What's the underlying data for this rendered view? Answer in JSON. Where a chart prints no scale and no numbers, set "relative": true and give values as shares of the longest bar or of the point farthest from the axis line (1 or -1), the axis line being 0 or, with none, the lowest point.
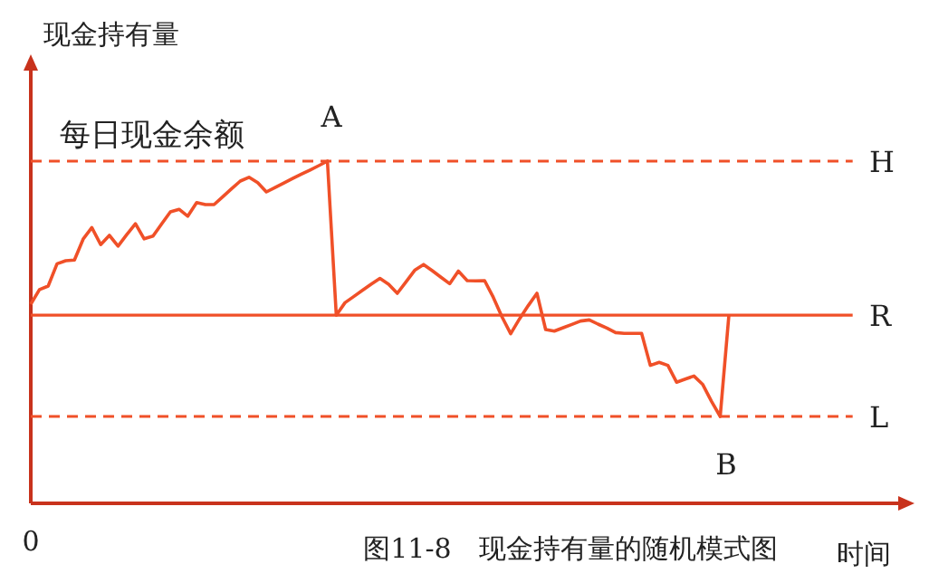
{
  "chart_data": {
    "type": "line",
    "relative": true,
    "title": "图11-8　现金持有量的随机模式图",
    "ylabel": "现金持有量",
    "xlabel": "时间",
    "marker": "none",
    "line_style": "solid",
    "categories": [
      null,
      null,
      null,
      null,
      null,
      null,
      null,
      null,
      null,
      null,
      null,
      null,
      null,
      null,
      null,
      null,
      null,
      null,
      null,
      null,
      null,
      null,
      null,
      null,
      null,
      null,
      null,
      null,
      null,
      null,
      null,
      null,
      null,
      null,
      null,
      null,
      null,
      null,
      null,
      null,
      null,
      null,
      null,
      null,
      null,
      null,
      null,
      null,
      null,
      null,
      null,
      null,
      null,
      null,
      null,
      null,
      null,
      null,
      null,
      null,
      null,
      null,
      null,
      null,
      null,
      null,
      null,
      null,
      null,
      null,
      null,
      null,
      null,
      null,
      null,
      null,
      null,
      null,
      null,
      null,
      null
    ],
    "series": [
      {
        "color": "#f05028",
        "values": [
          0.582,
          0.625,
          0.635,
          0.7,
          0.709,
          0.711,
          0.772,
          0.806,
          0.756,
          0.783,
          0.752,
          0.785,
          0.817,
          0.773,
          0.781,
          0.817,
          0.852,
          0.859,
          0.839,
          0.879,
          0.873,
          0.873,
          0.896,
          0.919,
          0.942,
          0.953,
          0.937,
          0.91,
          0.923,
          0.936,
          0.949,
          0.962,
          0.974,
          0.987,
          1.0,
          0.55,
          0.586,
          0.604,
          0.622,
          0.64,
          0.657,
          0.64,
          0.614,
          0.647,
          0.681,
          0.698,
          0.68,
          0.661,
          0.642,
          0.679,
          0.651,
          0.65,
          0.651,
          0.602,
          0.545,
          0.496,
          0.539,
          0.578,
          0.614,
          0.508,
          0.503,
          0.513,
          0.523,
          0.533,
          0.536,
          0.524,
          0.512,
          0.499,
          0.497,
          0.497,
          0.497,
          0.403,
          0.412,
          0.403,
          0.354,
          0.363,
          0.372,
          0.347,
          0.298,
          0.254,
          0.55
        ]
      }
    ],
    "ref_lines": [
      {
        "axis": "y",
        "value": 1.0,
        "label": "H",
        "line_style": "dashed",
        "color": "#f05028"
      },
      {
        "axis": "y",
        "value": 0.55,
        "label": "R",
        "line_style": "solid",
        "color": "#f05028"
      },
      {
        "axis": "y",
        "value": 0.254,
        "label": "L",
        "line_style": "dashed",
        "color": "#f05028"
      }
    ],
    "annotations": [
      "每日现金余额",
      "0",
      "A",
      "B"
    ]
  }
}
